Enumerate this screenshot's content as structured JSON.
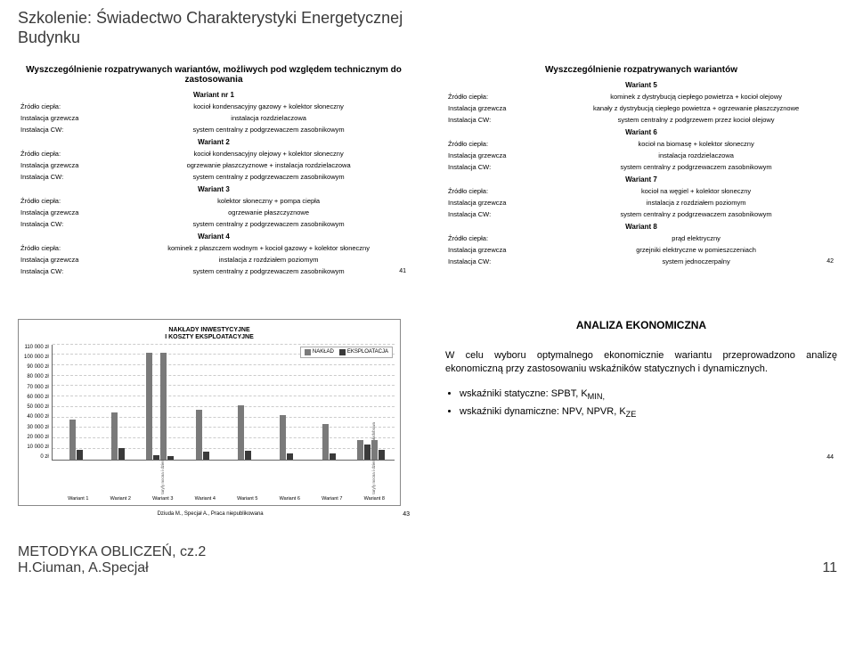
{
  "header": {
    "line1": "Szkolenie: Świadectwo Charakterystyki Energetycznej",
    "line2": "Budynku"
  },
  "left_block": {
    "title": "Wyszczególnienie rozpatrywanych wariantów, możliwych pod względem technicznym do zastosowania",
    "variants": [
      {
        "name": "Wariant nr 1",
        "rows": [
          [
            "Źródło ciepła:",
            "kocioł kondensacyjny gazowy + kolektor słoneczny"
          ],
          [
            "Instalacja grzewcza",
            "instalacja rozdzielaczowa"
          ],
          [
            "Instalacja CW:",
            "system centralny z podgrzewaczem zasobnikowym"
          ]
        ]
      },
      {
        "name": "Wariant 2",
        "rows": [
          [
            "Źródło ciepła:",
            "kocioł kondensacyjny olejowy + kolektor słoneczny"
          ],
          [
            "Instalacja grzewcza",
            "ogrzewanie płaszczyznowe + instalacja rozdzielaczowa"
          ],
          [
            "Instalacja CW:",
            "system centralny z podgrzewaczem zasobnikowym"
          ]
        ]
      },
      {
        "name": "Wariant 3",
        "rows": [
          [
            "Źródło ciepła:",
            "kolektor słoneczny + pompa ciepła"
          ],
          [
            "Instalacja grzewcza",
            "ogrzewanie płaszczyznowe"
          ],
          [
            "Instalacja CW:",
            "system centralny z podgrzewaczem zasobnikowym"
          ]
        ]
      },
      {
        "name": "Wariant 4",
        "rows": [
          [
            "Źródło ciepła:",
            "kominek z płaszczem wodnym + kocioł gazowy + kolektor słoneczny"
          ],
          [
            "Instalacja grzewcza",
            "instalacja z rozdziałem poziomym"
          ],
          [
            "Instalacja CW:",
            "system centralny z podgrzewaczem zasobnikowym"
          ]
        ]
      }
    ],
    "slide_num": "41"
  },
  "right_block": {
    "title": "Wyszczególnienie rozpatrywanych wariantów",
    "variants": [
      {
        "name": "Wariant 5",
        "rows": [
          [
            "Źródło ciepła:",
            "kominek z dystrybucją ciepłego powietrza + kocioł olejowy"
          ],
          [
            "Instalacja grzewcza",
            "kanały z dystrybucją ciepłego powietrza + ogrzewanie płaszczyznowe"
          ],
          [
            "Instalacja CW:",
            "system centralny z podgrzewem przez kocioł olejowy"
          ]
        ]
      },
      {
        "name": "Wariant 6",
        "rows": [
          [
            "Źródło ciepła:",
            "kocioł na biomasę + kolektor słoneczny"
          ],
          [
            "Instalacja grzewcza",
            "instalacja rozdzielaczowa"
          ],
          [
            "Instalacja CW:",
            "system centralny z podgrzewaczem zasobnikowym"
          ]
        ]
      },
      {
        "name": "Wariant 7",
        "rows": [
          [
            "Źródło ciepła:",
            "kocioł na węgiel  + kolektor słoneczny"
          ],
          [
            "Instalacja grzewcza",
            "instalacja z rozdziałem poziomym"
          ],
          [
            "Instalacja CW:",
            "system centralny z podgrzewaczem zasobnikowym"
          ]
        ]
      },
      {
        "name": "Wariant 8",
        "rows": [
          [
            "Źródło ciepła:",
            "prąd elektryczny"
          ],
          [
            "Instalacja grzewcza",
            "grzejniki elektryczne w pomieszczeniach"
          ],
          [
            "Instalacja CW:",
            "system jednoczerpalny"
          ]
        ]
      }
    ],
    "slide_num": "42"
  },
  "chart": {
    "title1": "NAKŁADY INWESTYCYJNE",
    "title2": "I KOSZTY EKSPLOATACYJNE",
    "legend": {
      "a": "NAKŁAD",
      "b": "EKSPLOATACJA"
    },
    "colors": {
      "naklad": "#7a7a7a",
      "eksploatacja": "#3a3a3a",
      "grid": "#cccccc",
      "border": "#888888"
    },
    "ymax": 110000,
    "ylabels": [
      "0 zł",
      "10 000 zł",
      "20 000 zł",
      "30 000 zł",
      "40 000 zł",
      "50 000 zł",
      "60 000 zł",
      "70 000 zł",
      "80 000 zł",
      "90 000 zł",
      "100 000 zł",
      "110 000 zł"
    ],
    "groups": [
      {
        "label": "Wariant 1",
        "bars": [
          [
            38000,
            9000
          ]
        ]
      },
      {
        "label": "Wariant 2",
        "bars": [
          [
            45000,
            11000
          ]
        ]
      },
      {
        "label": "Wariant 3",
        "bars": [
          [
            102000,
            4000
          ],
          [
            102000,
            3000
          ]
        ],
        "subs": [
          "taryfa całodobowa",
          "taryfy nocna i dzienna"
        ]
      },
      {
        "label": "Wariant 4",
        "bars": [
          [
            47000,
            7000
          ]
        ]
      },
      {
        "label": "Wariant 5",
        "bars": [
          [
            52000,
            8000
          ]
        ]
      },
      {
        "label": "Wariant 6",
        "bars": [
          [
            42000,
            6000
          ]
        ]
      },
      {
        "label": "Wariant 7",
        "bars": [
          [
            34000,
            6000
          ]
        ]
      },
      {
        "label": "Wariant 8",
        "bars": [
          [
            18000,
            14000
          ],
          [
            18000,
            9000
          ]
        ],
        "subs": [
          "taryfa całodobowa",
          "taryfy nocna i dzienna"
        ]
      }
    ],
    "slide_num": "43",
    "cite": "Dziuda M., Specjał A., Praca niepublikowana"
  },
  "analysis": {
    "heading": "ANALIZA EKONOMICZNA",
    "para": "W celu wyboru optymalnego ekonomicznie wariantu przeprowadzono analizę ekonomiczną przy zastosowaniu wskaźników statycznych i dynamicznych.",
    "bullets": [
      "wskaźniki statyczne: SPBT, K",
      "wskaźniki dynamiczne: NPV, NPVR, K"
    ],
    "sub1": "MIN,",
    "sub2": "ZE",
    "slide_num": "44"
  },
  "footer": {
    "line1": "METODYKA OBLICZEŃ, cz.2",
    "line2": "H.Ciuman, A.Specjał",
    "page": "11"
  }
}
